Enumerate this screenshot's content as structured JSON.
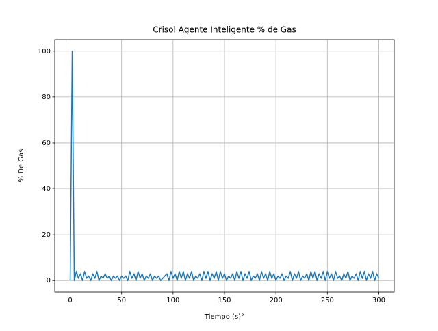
{
  "chart_data": {
    "type": "line",
    "title": "Crisol Agente Inteligente % de Gas",
    "x_label": "Tiempo (s)°",
    "y_label": "% De Gas",
    "x": [
      0,
      2,
      4,
      6,
      8,
      10,
      12,
      14,
      16,
      18,
      20,
      22,
      24,
      26,
      28,
      30,
      32,
      34,
      36,
      38,
      40,
      42,
      44,
      46,
      48,
      50,
      52,
      54,
      56,
      58,
      60,
      62,
      64,
      66,
      68,
      70,
      72,
      74,
      76,
      78,
      80,
      82,
      84,
      86,
      88,
      90,
      92,
      94,
      96,
      98,
      100,
      102,
      104,
      106,
      108,
      110,
      112,
      114,
      116,
      118,
      120,
      122,
      124,
      126,
      128,
      130,
      132,
      134,
      136,
      138,
      140,
      142,
      144,
      146,
      148,
      150,
      152,
      154,
      156,
      158,
      160,
      162,
      164,
      166,
      168,
      170,
      172,
      174,
      176,
      178,
      180,
      182,
      184,
      186,
      188,
      190,
      192,
      194,
      196,
      198,
      200,
      202,
      204,
      206,
      208,
      210,
      212,
      214,
      216,
      218,
      220,
      222,
      224,
      226,
      228,
      230,
      232,
      234,
      236,
      238,
      240,
      242,
      244,
      246,
      248,
      250,
      252,
      254,
      256,
      258,
      260,
      262,
      264,
      266,
      268,
      270,
      272,
      274,
      276,
      278,
      280,
      282,
      284,
      286,
      288,
      290,
      292,
      294,
      296,
      298,
      300
    ],
    "series": [
      {
        "name": "% de Gas",
        "color": "#1f77b4",
        "values": [
          0,
          100,
          0,
          4,
          1,
          3,
          0,
          4,
          1,
          2,
          0,
          3,
          1,
          4,
          0,
          2,
          1,
          3,
          1,
          2,
          0,
          2,
          1,
          2,
          0,
          2,
          1,
          2,
          0,
          4,
          1,
          3,
          0,
          4,
          1,
          3,
          0,
          2,
          1,
          3,
          0,
          2,
          1,
          2,
          0,
          1,
          2,
          3,
          0,
          4,
          1,
          3,
          0,
          4,
          1,
          4,
          0,
          3,
          1,
          4,
          0,
          2,
          1,
          3,
          0,
          4,
          1,
          4,
          0,
          3,
          1,
          4,
          0,
          4,
          1,
          3,
          0,
          2,
          1,
          3,
          0,
          4,
          1,
          4,
          0,
          3,
          1,
          4,
          0,
          2,
          1,
          3,
          0,
          4,
          1,
          3,
          0,
          4,
          1,
          3,
          0,
          2,
          1,
          3,
          0,
          2,
          1,
          4,
          0,
          3,
          1,
          4,
          0,
          2,
          1,
          3,
          0,
          4,
          1,
          4,
          0,
          3,
          1,
          4,
          0,
          4,
          1,
          3,
          0,
          4,
          1,
          2,
          0,
          3,
          1,
          4,
          0,
          2,
          1,
          3,
          0,
          4,
          1,
          4,
          0,
          3,
          1,
          4,
          0,
          3,
          1
        ]
      }
    ],
    "xlim": [
      -15,
      315
    ],
    "ylim": [
      -5,
      105
    ],
    "xticks": [
      0,
      50,
      100,
      150,
      200,
      250,
      300
    ],
    "yticks": [
      0,
      20,
      40,
      60,
      80,
      100
    ],
    "grid": true
  }
}
